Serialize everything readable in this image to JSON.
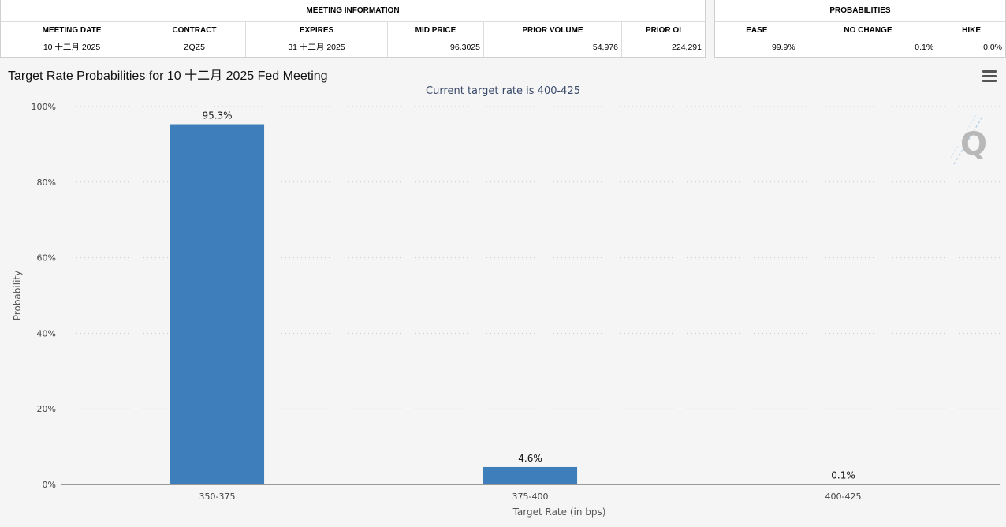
{
  "meeting_info": {
    "title": "MEETING INFORMATION",
    "headers": [
      "MEETING DATE",
      "CONTRACT",
      "EXPIRES",
      "MID PRICE",
      "PRIOR VOLUME",
      "PRIOR OI"
    ],
    "row": [
      "10 十二月 2025",
      "ZQZ5",
      "31 十二月 2025",
      "96.3025",
      "54,976",
      "224,291"
    ]
  },
  "probabilities": {
    "title": "PROBABILITIES",
    "headers": [
      "EASE",
      "NO CHANGE",
      "HIKE"
    ],
    "row": [
      "99.9%",
      "0.1%",
      "0.0%"
    ]
  },
  "chart": {
    "menu_icon": "hamburger-menu-icon",
    "watermark_icon": "q-logo-icon",
    "bar_color": "#3d7ebb"
  },
  "chart_data": {
    "type": "bar",
    "title": "Target Rate Probabilities for 10 十二月 2025 Fed Meeting",
    "subtitle": "Current target rate is 400-425",
    "xlabel": "Target Rate (in bps)",
    "ylabel": "Probability",
    "categories": [
      "350-375",
      "375-400",
      "400-425"
    ],
    "values": [
      95.3,
      4.6,
      0.1
    ],
    "data_labels": [
      "95.3%",
      "4.6%",
      "0.1%"
    ],
    "ylim": [
      0,
      100
    ],
    "yticks": [
      "0%",
      "20%",
      "40%",
      "60%",
      "80%",
      "100%"
    ],
    "ytick_values": [
      0,
      20,
      40,
      60,
      80,
      100
    ],
    "grid": true,
    "legend": "none"
  }
}
